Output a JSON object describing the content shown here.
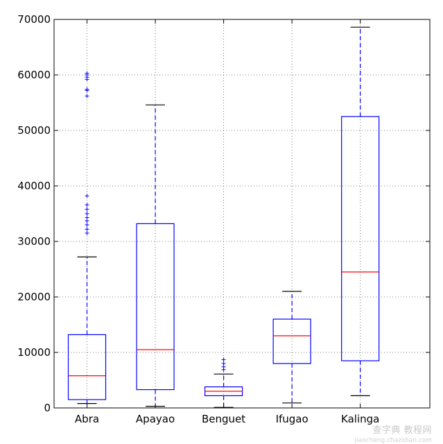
{
  "chart_data": {
    "type": "box",
    "title": "",
    "xlabel": "",
    "ylabel": "",
    "ylim": [
      0,
      70000
    ],
    "yticks": [
      0,
      10000,
      20000,
      30000,
      40000,
      50000,
      60000,
      70000
    ],
    "ytick_labels": [
      "0",
      "10000",
      "20000",
      "30000",
      "40000",
      "50000",
      "60000",
      "70000"
    ],
    "grid": true,
    "colors": {
      "box": "#0000ff",
      "median": "#ff0000",
      "whisker": "#0000ff",
      "cap": "#000000",
      "flier": "#0000ff",
      "grid": "#555555"
    },
    "categories": [
      "Abra",
      "Apayao",
      "Benguet",
      "Ifugao",
      "Kalinga"
    ],
    "boxes": [
      {
        "label": "Abra",
        "whislo": 800,
        "q1": 1500,
        "med": 5800,
        "q3": 13200,
        "whishi": 27200,
        "fliers": [
          31500,
          32200,
          33000,
          33700,
          34300,
          35000,
          35800,
          36600,
          38200,
          56200,
          57200,
          57400,
          59200,
          59600,
          60000,
          60300
        ]
      },
      {
        "label": "Apayao",
        "whislo": 300,
        "q1": 3300,
        "med": 10500,
        "q3": 33200,
        "whishi": 54600,
        "fliers": []
      },
      {
        "label": "Benguet",
        "whislo": 100,
        "q1": 2200,
        "med": 3000,
        "q3": 3800,
        "whishi": 6100,
        "fliers": [
          6900,
          7400,
          8000,
          8700
        ]
      },
      {
        "label": "Ifugao",
        "whislo": 900,
        "q1": 8000,
        "med": 13000,
        "q3": 16000,
        "whishi": 21000,
        "fliers": []
      },
      {
        "label": "Kalinga",
        "whislo": 2200,
        "q1": 8500,
        "med": 24500,
        "q3": 52500,
        "whishi": 68600,
        "fliers": []
      }
    ]
  },
  "watermark": {
    "text": "查字典 教程网",
    "url": "jiaocheng.chazidian.com"
  }
}
